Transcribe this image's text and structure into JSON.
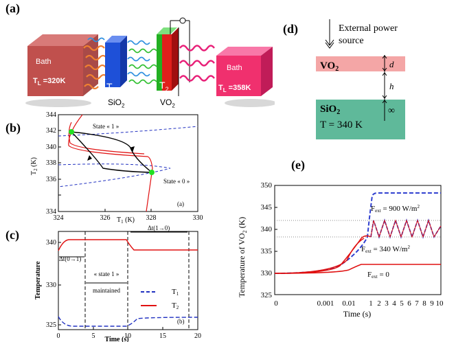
{
  "panel_a": {
    "label": "(a)",
    "bath_left_label": "Bath",
    "bath_left_temp": "T",
    "bath_left_temp_sub": "L",
    "bath_left_temp_val": " =320K",
    "t1_label": "T",
    "t1_sub": "1",
    "t2_label": "T",
    "t2_sub": "2",
    "sio2_label": "SiO",
    "sio2_sub": "2",
    "vo2_label": "VO",
    "vo2_sub": "2",
    "bath_right_label": "Bath",
    "bath_right_temp": "T",
    "bath_right_temp_sub": "L",
    "bath_right_temp_val": " =358K",
    "colors": {
      "bath_left": "#c0504d",
      "bath_right": "#f0306e",
      "sio2": "#1e50d8",
      "vo2_red": "#e0201c",
      "vo2_green": "#22b022",
      "wave_orange": "#f08030",
      "wave_blue": "#3090e0",
      "wave_green": "#30c030",
      "wave_pink": "#e82078"
    }
  },
  "panel_b": {
    "label": "(b)",
    "ylabel": "T",
    "ylabel_sub": "2",
    "ylabel_unit": " (K)",
    "xlabel": "T",
    "xlabel_sub": "1",
    "xlabel_unit": " (K)",
    "x_ticks": [
      "324",
      "326",
      "328",
      "330"
    ],
    "y_ticks": [
      "334",
      "336",
      "338",
      "340",
      "342",
      "344"
    ],
    "state1": "State « 1 »",
    "state0": "State « 0 »",
    "inner_label": "(a)"
  },
  "panel_c": {
    "label": "(c)",
    "ylabel": "Temperature",
    "xlabel": "Time (s)",
    "x_ticks": [
      "0",
      "5",
      "10",
      "15",
      "20"
    ],
    "y_ticks": [
      "325",
      "330",
      "340"
    ],
    "dt01": "Δt(0→1)",
    "dt10": "Δt(1→0)",
    "state1_line1": "« state 1 »",
    "state1_line2": "maintained",
    "legend_t1": "T",
    "legend_t1_sub": "1",
    "legend_t2": "T",
    "legend_t2_sub": "2",
    "inner_label": "(b)"
  },
  "panel_d": {
    "label": "(d)",
    "source_line1": "External power",
    "source_line2": "source",
    "vo2": "VO",
    "vo2_sub": "2",
    "d": "d",
    "h": "h",
    "sio2": "SiO",
    "sio2_sub": "2",
    "infinity": "∞",
    "temp": "T = 340 K",
    "colors": {
      "vo2": "#f4a6a6",
      "sio2": "#5fb99a"
    }
  },
  "panel_e": {
    "label": "(e)",
    "ylabel": "Temperature of VO",
    "ylabel_sub": "2",
    "ylabel_unit": " (K)",
    "xlabel": "Time (s)",
    "y_ticks": [
      "325",
      "330",
      "335",
      "340",
      "345",
      "350"
    ],
    "x_ticks": [
      "0",
      "0.001",
      "0.01",
      "1",
      "2",
      "3",
      "4",
      "5",
      "6",
      "7",
      "8",
      "9",
      "10"
    ],
    "f900": "F",
    "f900_sub": "ext",
    "f900_val": " = 900 W/m",
    "f340": "F",
    "f340_sub": "ext",
    "f340_val": " = 340 W/m",
    "f0": "F",
    "f0_sub": "ext",
    "f0_val": " = 0",
    "sq": "2"
  }
}
